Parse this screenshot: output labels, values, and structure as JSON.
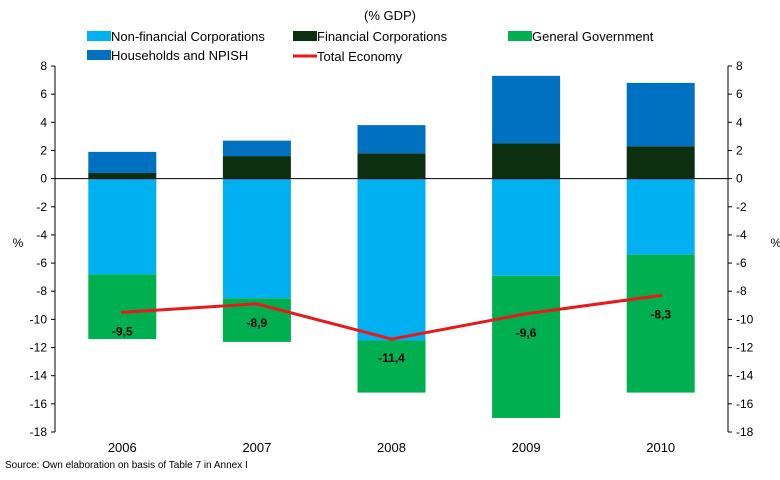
{
  "chart_data": {
    "type": "bar",
    "subtitle": "(% GDP)",
    "ylabel": "%",
    "ylabel_right": "%",
    "source": "Source: Own elaboration on basis of Table 7 in Annex I",
    "categories": [
      "2006",
      "2007",
      "2008",
      "2009",
      "2010"
    ],
    "ylim": [
      -18,
      8
    ],
    "yticks": [
      8,
      6,
      4,
      2,
      0,
      -2,
      -4,
      -6,
      -8,
      -10,
      -12,
      -14,
      -16,
      -18
    ],
    "grid": false,
    "legend_position": "top",
    "series": [
      {
        "name": "Non-financial Corporations",
        "color": "#00b0f0",
        "kind": "bar",
        "values": [
          -6.8,
          -8.5,
          -11.5,
          -6.9,
          -5.4
        ]
      },
      {
        "name": "Financial Corporations",
        "color": "#0c2f10",
        "kind": "bar",
        "values": [
          0.4,
          1.6,
          1.8,
          2.5,
          2.3
        ]
      },
      {
        "name": "General Government",
        "color": "#00b050",
        "kind": "bar",
        "values": [
          -4.6,
          -3.1,
          -3.7,
          -10.1,
          -9.8
        ]
      },
      {
        "name": "Households and NPISH",
        "color": "#0070c0",
        "kind": "bar",
        "values": [
          1.5,
          1.1,
          2.0,
          4.8,
          4.5
        ]
      },
      {
        "name": "Total Economy",
        "color": "#e8191d",
        "kind": "line",
        "values": [
          -9.5,
          -8.9,
          -11.4,
          -9.6,
          -8.3
        ]
      }
    ],
    "data_labels": [
      "-9,5",
      "-8,9",
      "-11,4",
      "-9,6",
      "-8,3"
    ]
  }
}
